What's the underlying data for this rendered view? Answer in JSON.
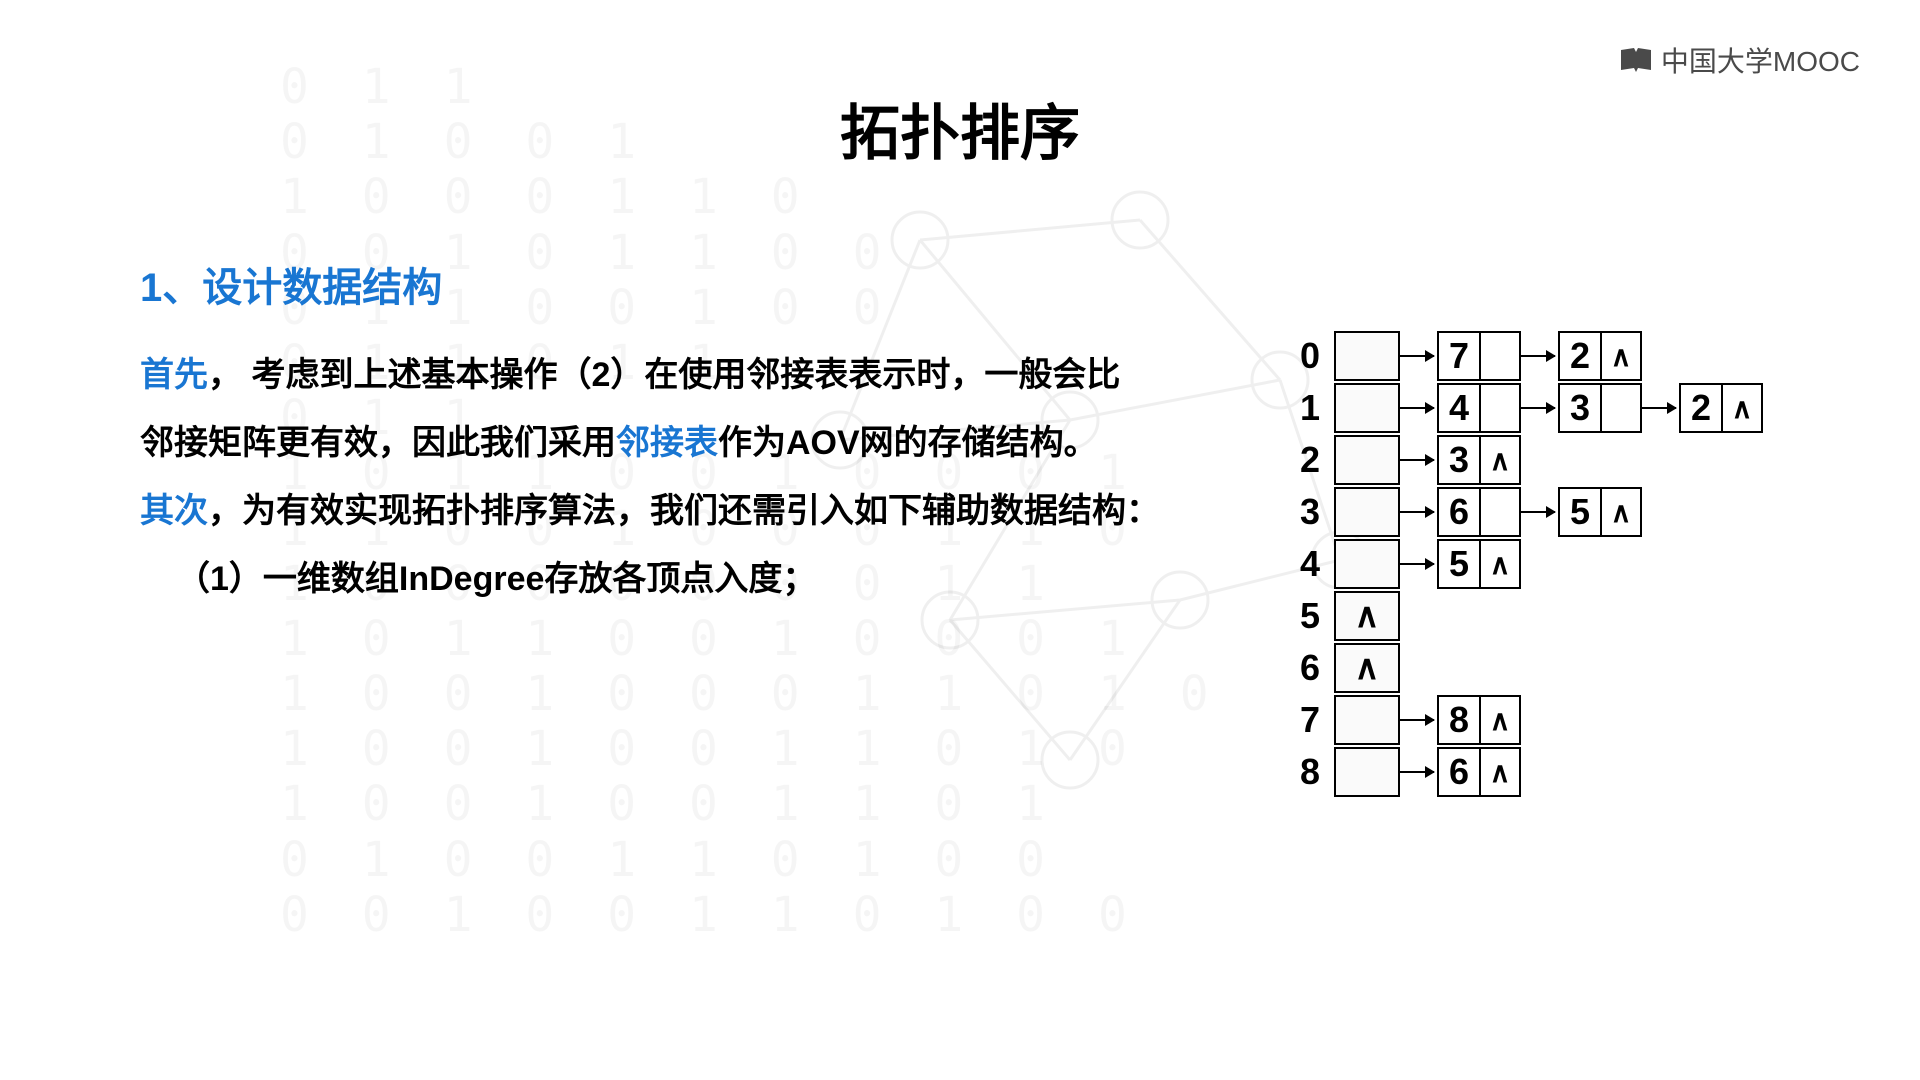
{
  "logo_text": "中国大学MOOC",
  "title": "拓扑排序",
  "heading": "1、设计数据结构",
  "p1_a": "首先",
  "p1_b": "，  考虑到上述基本操作（2）在使用邻接表表示时，一般会比",
  "p2_a": "邻接矩阵更有效，因此我们采用",
  "p2_kw": "邻接表",
  "p2_b": "作为AOV网的存储结构。",
  "p3_a": "其次",
  "p3_b": "，为有效实现拓扑排序算法，我们还需引入如下辅助数据结构：",
  "p4": "（1）一维数组InDegree存放各顶点入度；",
  "adjacency_list": {
    "null_symbol": "∧",
    "rows": [
      {
        "idx": "0",
        "head": "",
        "nodes": [
          {
            "v": "7",
            "last": false
          },
          {
            "v": "2",
            "last": true
          }
        ]
      },
      {
        "idx": "1",
        "head": "",
        "nodes": [
          {
            "v": "4",
            "last": false
          },
          {
            "v": "3",
            "last": false
          },
          {
            "v": "2",
            "last": true
          }
        ]
      },
      {
        "idx": "2",
        "head": "",
        "nodes": [
          {
            "v": "3",
            "last": true
          }
        ]
      },
      {
        "idx": "3",
        "head": "",
        "nodes": [
          {
            "v": "6",
            "last": false
          },
          {
            "v": "5",
            "last": true
          }
        ]
      },
      {
        "idx": "4",
        "head": "",
        "nodes": [
          {
            "v": "5",
            "last": true
          }
        ]
      },
      {
        "idx": "5",
        "head": "∧",
        "nodes": []
      },
      {
        "idx": "6",
        "head": "∧",
        "nodes": []
      },
      {
        "idx": "7",
        "head": "",
        "nodes": [
          {
            "v": "8",
            "last": true
          }
        ]
      },
      {
        "idx": "8",
        "head": "",
        "nodes": [
          {
            "v": "6",
            "last": true
          }
        ]
      }
    ]
  },
  "colors": {
    "keyword": "#1976d2",
    "text": "#000000",
    "border": "#000000",
    "head_bg": "#fafafa"
  },
  "binary_bg": "0 1 1\n0 1 0 0 1\n1 0 0 0 1 1 0\n0 0 1 0 1 1 0 0\n0 1 1 0 0 1 0 0\n0 1 1 0 1 1\n0 1 1\n1 0 1 1 0 0 1 0 0 0 1\n1 1 0 0 1 0 0 0 1 1 0\n1 0 0 0 0 0 0 0 1 1\n1 0 1 1 0 0 1 0 0 0 1\n1 0 0 1 0 0 0 1 1 0 1 0\n1 0 0 1 0 0 1 1 0 1 0\n1 0 0 1 0 0 1 1 0 1\n0 1 0 0 1 1 0 1 0 0\n0 0 1 0 0 1 1 0 1 0 0"
}
